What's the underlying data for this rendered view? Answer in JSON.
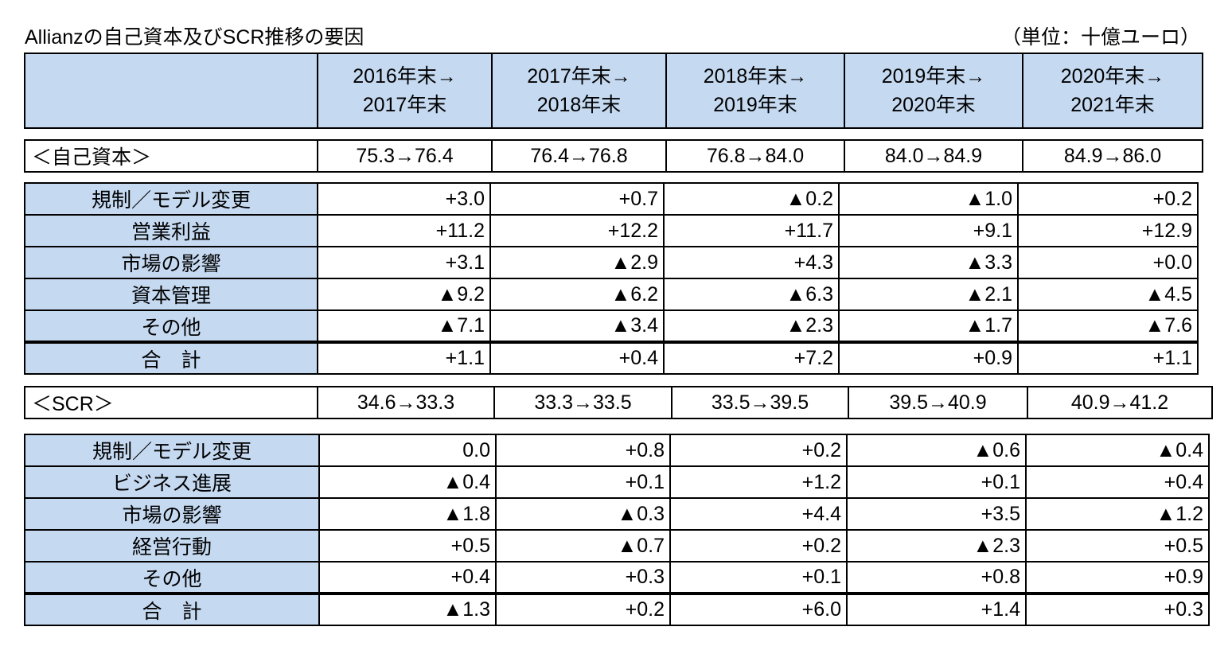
{
  "title": "Allianzの自己資本及びSCR推移の要因",
  "unit": "（単位：十億ユーロ）",
  "header": {
    "periods": [
      {
        "line1": "2016年末→",
        "line2": "2017年末"
      },
      {
        "line1": "2017年末→",
        "line2": "2018年末"
      },
      {
        "line1": "2018年末→",
        "line2": "2019年末"
      },
      {
        "line1": "2019年末→",
        "line2": "2020年末"
      },
      {
        "line1": "2020年末→",
        "line2": "2021年末"
      }
    ]
  },
  "equity": {
    "label": "＜自己資本＞",
    "transitions": [
      "75.3→76.4",
      "76.4→76.8",
      "76.8→84.0",
      "84.0→84.9",
      "84.9→86.0"
    ],
    "rows": [
      {
        "label": "規制／モデル変更",
        "values": [
          "+3.0",
          "+0.7",
          "▲0.2",
          "▲1.0",
          "+0.2"
        ]
      },
      {
        "label": "営業利益",
        "values": [
          "+11.2",
          "+12.2",
          "+11.7",
          "+9.1",
          "+12.9"
        ]
      },
      {
        "label": "市場の影響",
        "values": [
          "+3.1",
          "▲2.9",
          "+4.3",
          "▲3.3",
          "+0.0"
        ]
      },
      {
        "label": "資本管理",
        "values": [
          "▲9.2",
          "▲6.2",
          "▲6.3",
          "▲2.1",
          "▲4.5"
        ]
      },
      {
        "label": "その他",
        "values": [
          "▲7.1",
          "▲3.4",
          "▲2.3",
          "▲1.7",
          "▲7.6"
        ]
      }
    ],
    "total": {
      "label": "合　計",
      "values": [
        "+1.1",
        "+0.4",
        "+7.2",
        "+0.9",
        "+1.1"
      ]
    }
  },
  "scr": {
    "label": "＜SCR＞",
    "transitions": [
      "34.6→33.3",
      "33.3→33.5",
      "33.5→39.5",
      "39.5→40.9",
      "40.9→41.2"
    ],
    "rows": [
      {
        "label": "規制／モデル変更",
        "values": [
          "0.0",
          "+0.8",
          "+0.2",
          "▲0.6",
          "▲0.4"
        ]
      },
      {
        "label": "ビジネス進展",
        "values": [
          "▲0.4",
          "+0.1",
          "+1.2",
          "+0.1",
          "+0.4"
        ]
      },
      {
        "label": "市場の影響",
        "values": [
          "▲1.8",
          "▲0.3",
          "+4.4",
          "+3.5",
          "▲1.2"
        ]
      },
      {
        "label": "経営行動",
        "values": [
          "+0.5",
          "▲0.7",
          "+0.2",
          "▲2.3",
          "+0.5"
        ]
      },
      {
        "label": "その他",
        "values": [
          "+0.4",
          "+0.3",
          "+0.1",
          "+0.8",
          "+0.9"
        ]
      }
    ],
    "total": {
      "label": "合　計",
      "values": [
        "▲1.3",
        "+0.2",
        "+6.0",
        "+1.4",
        "+0.3"
      ]
    }
  },
  "colors": {
    "header_fill": "#c5d9f1",
    "border": "#000000"
  }
}
